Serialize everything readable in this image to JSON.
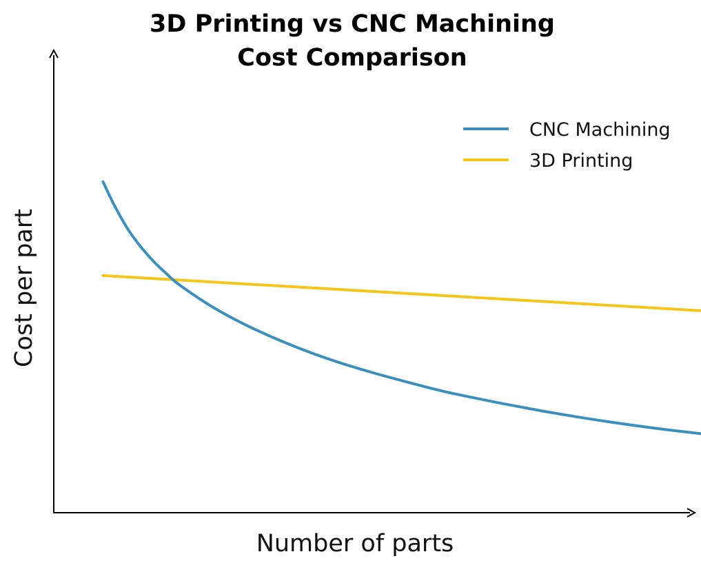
{
  "chart_data": {
    "type": "line",
    "title": [
      "3D Printing vs CNC Machining",
      "Cost Comparison"
    ],
    "xlabel": "Number of parts",
    "ylabel": "Cost per part",
    "xlim": [
      0,
      100
    ],
    "ylim": [
      0,
      100
    ],
    "ticks_shown": false,
    "grid": false,
    "legend_position": "top-right",
    "series": [
      {
        "name": "CNC Machining",
        "color": "#3a8fbf",
        "x": [
          8.3,
          10,
          12,
          14,
          16,
          18,
          20,
          25,
          30,
          35,
          40,
          45,
          50,
          55,
          60,
          65,
          70,
          75,
          80,
          85,
          90,
          95,
          100
        ],
        "y": [
          70.7,
          65.7,
          60.7,
          56.8,
          53.6,
          50.9,
          48.5,
          43.8,
          40.0,
          36.8,
          34.0,
          31.6,
          29.5,
          27.6,
          25.8,
          24.3,
          22.9,
          21.6,
          20.4,
          19.3,
          18.3,
          17.4,
          16.6
        ]
      },
      {
        "name": "3D Printing",
        "color": "#f5c518",
        "x": [
          8.3,
          100
        ],
        "y": [
          50.6,
          43.0
        ]
      }
    ]
  }
}
